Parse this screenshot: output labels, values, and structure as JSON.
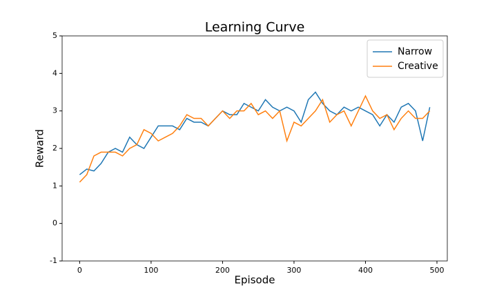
{
  "chart_data": {
    "type": "line",
    "title": "Learning Curve",
    "x_label": "Episode",
    "y_label": "Reward",
    "x": [
      0,
      10,
      20,
      30,
      40,
      50,
      60,
      70,
      80,
      90,
      100,
      110,
      120,
      130,
      140,
      150,
      160,
      170,
      180,
      190,
      200,
      210,
      220,
      230,
      240,
      250,
      260,
      270,
      280,
      290,
      300,
      310,
      320,
      330,
      340,
      350,
      360,
      370,
      380,
      390,
      400,
      410,
      420,
      430,
      440,
      450,
      460,
      470,
      480,
      490
    ],
    "series": [
      {
        "name": "Narrow",
        "color": "#1f77b4",
        "values": [
          1.3,
          1.45,
          1.4,
          1.6,
          1.9,
          2.0,
          1.9,
          2.3,
          2.1,
          2.0,
          2.3,
          2.6,
          2.6,
          2.6,
          2.5,
          2.8,
          2.7,
          2.7,
          2.6,
          2.8,
          3.0,
          2.9,
          2.9,
          3.2,
          3.1,
          3.0,
          3.3,
          3.1,
          3.0,
          3.1,
          3.0,
          2.7,
          3.3,
          3.5,
          3.2,
          3.0,
          2.9,
          3.1,
          3.0,
          3.1,
          3.0,
          2.9,
          2.6,
          2.9,
          2.7,
          3.1,
          3.2,
          3.0,
          2.2,
          3.1
        ]
      },
      {
        "name": "Creative",
        "color": "#ff7f0e",
        "values": [
          1.1,
          1.3,
          1.8,
          1.9,
          1.9,
          1.9,
          1.8,
          2.0,
          2.1,
          2.5,
          2.4,
          2.2,
          2.3,
          2.4,
          2.6,
          2.9,
          2.8,
          2.8,
          2.6,
          2.8,
          3.0,
          2.8,
          3.0,
          3.0,
          3.2,
          2.9,
          3.0,
          2.8,
          3.0,
          2.2,
          2.7,
          2.6,
          2.8,
          3.0,
          3.3,
          2.7,
          2.9,
          3.0,
          2.6,
          3.0,
          3.4,
          3.0,
          2.8,
          2.9,
          2.5,
          2.8,
          3.0,
          2.8,
          2.8,
          3.0
        ]
      }
    ],
    "xlim": [
      -24.5,
      514.5
    ],
    "ylim": [
      -1,
      5
    ],
    "xticks": [
      0,
      100,
      200,
      300,
      400,
      500
    ],
    "yticks": [
      -1,
      0,
      1,
      2,
      3,
      4,
      5
    ],
    "legend": "upper right"
  }
}
